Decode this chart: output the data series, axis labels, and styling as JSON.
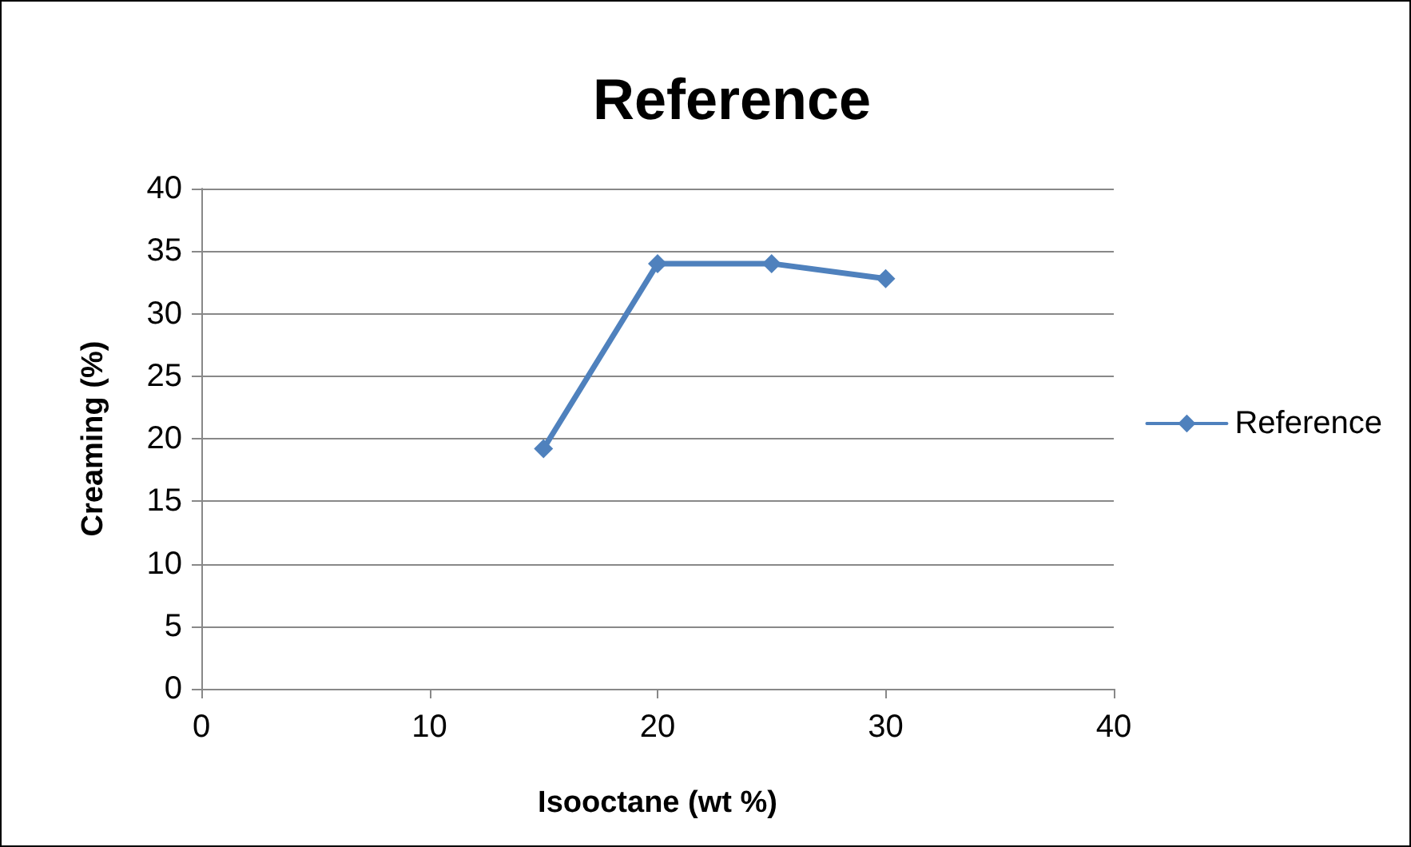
{
  "chart_data": {
    "type": "line",
    "title": "Reference",
    "xlabel": "Isooctane (wt %)",
    "ylabel": "Creaming (%)",
    "x": [
      15,
      20,
      25,
      30
    ],
    "series": [
      {
        "name": "Reference",
        "color": "#4f81bd",
        "values": [
          19.2,
          34,
          34,
          32.8
        ]
      }
    ],
    "xlim": [
      0,
      40
    ],
    "xticks": [
      0,
      10,
      20,
      30,
      40
    ],
    "ylim": [
      0,
      40
    ],
    "yticks": [
      0,
      5,
      10,
      15,
      20,
      25,
      30,
      35,
      40
    ],
    "grid": "y",
    "legend": "right",
    "marker": "diamond",
    "line_style": "solid"
  }
}
